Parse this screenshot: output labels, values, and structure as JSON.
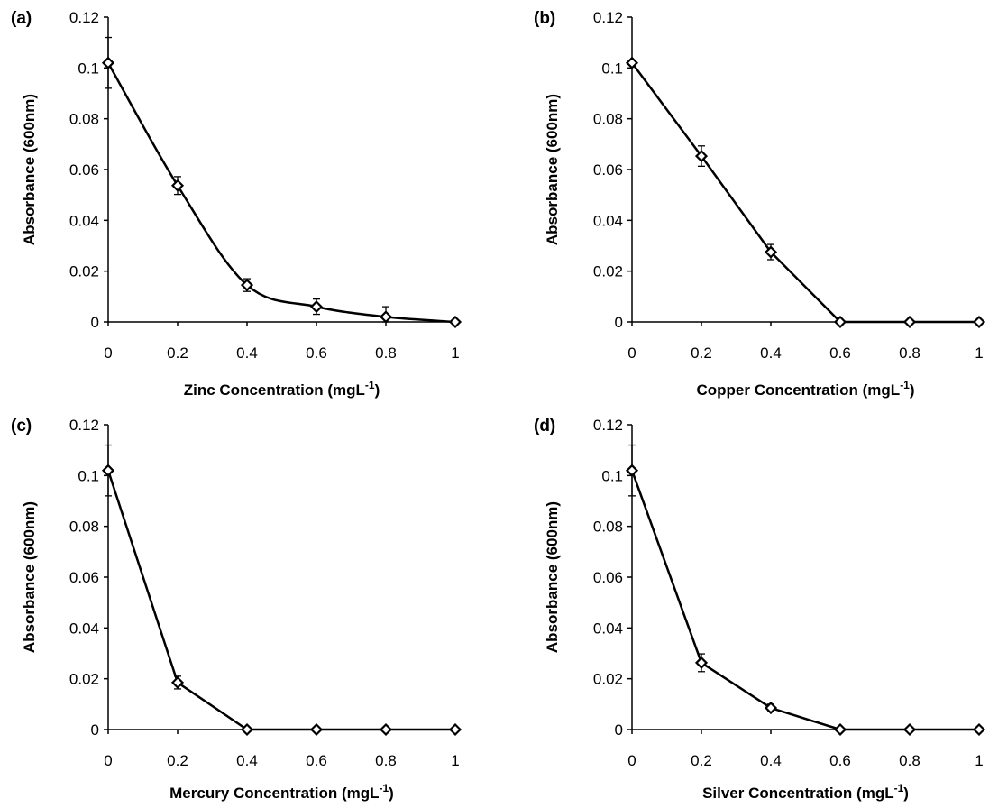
{
  "chart_data": [
    {
      "panel_label": "(a)",
      "type": "line",
      "smooth": true,
      "xlabel_main": "Zinc Concentration  (mgL",
      "xlabel_sup": "-1",
      "xlabel_end": ")",
      "ylabel": "Absorbance (600nm)",
      "xlim": [
        0,
        1
      ],
      "ylim": [
        0,
        0.12
      ],
      "x_ticks": [
        "0",
        "0.2",
        "0.4",
        "0.6",
        "0.8",
        "1"
      ],
      "y_ticks": [
        "0",
        "0.02",
        "0.04",
        "0.06",
        "0.08",
        "0.1",
        "0.12"
      ],
      "x": [
        0,
        0.2,
        0.4,
        0.6,
        0.8,
        1.0
      ],
      "y": [
        0.102,
        0.0537,
        0.0145,
        0.006,
        0.002,
        0.0
      ],
      "error": [
        0.01,
        0.0035,
        0.0025,
        0.003,
        0.004,
        0.0
      ]
    },
    {
      "panel_label": "(b)",
      "type": "line",
      "smooth": false,
      "xlabel_main": "Copper Concentration  (mgL",
      "xlabel_sup": "-1",
      "xlabel_end": ")",
      "ylabel": "Absorbance (600nm)",
      "xlim": [
        0,
        1
      ],
      "ylim": [
        0,
        0.12
      ],
      "x_ticks": [
        "0",
        "0.2",
        "0.4",
        "0.6",
        "0.8",
        "1"
      ],
      "y_ticks": [
        "0",
        "0.02",
        "0.04",
        "0.06",
        "0.08",
        "0.1",
        "0.12"
      ],
      "x": [
        0,
        0.2,
        0.4,
        0.6,
        0.8,
        1.0
      ],
      "y": [
        0.102,
        0.0653,
        0.0275,
        0.0,
        0.0,
        0.0
      ],
      "error": [
        0.0,
        0.004,
        0.003,
        0.0,
        0.0,
        0.0
      ]
    },
    {
      "panel_label": "(c)",
      "type": "line",
      "smooth": false,
      "xlabel_main": "Mercury Concentration  (mgL",
      "xlabel_sup": "-1",
      "xlabel_end": ")",
      "ylabel": "Absorbance (600nm)",
      "xlim": [
        0,
        1
      ],
      "ylim": [
        0,
        0.12
      ],
      "x_ticks": [
        "0",
        "0.2",
        "0.4",
        "0.6",
        "0.8",
        "1"
      ],
      "y_ticks": [
        "0",
        "0.02",
        "0.04",
        "0.06",
        "0.08",
        "0.1",
        "0.12"
      ],
      "x": [
        0,
        0.2,
        0.4,
        0.6,
        0.8,
        1.0
      ],
      "y": [
        0.102,
        0.0185,
        0.0,
        0.0,
        0.0,
        0.0
      ],
      "error": [
        0.01,
        0.0025,
        0.0,
        0.0,
        0.0,
        0.0
      ]
    },
    {
      "panel_label": "(d)",
      "type": "line",
      "smooth": false,
      "xlabel_main": "Silver Concentration  (mgL",
      "xlabel_sup": "-1",
      "xlabel_end": ")",
      "ylabel": "Absorbance (600nm)",
      "xlim": [
        0,
        1
      ],
      "ylim": [
        0,
        0.12
      ],
      "x_ticks": [
        "0",
        "0.2",
        "0.4",
        "0.6",
        "0.8",
        "1"
      ],
      "y_ticks": [
        "0",
        "0.02",
        "0.04",
        "0.06",
        "0.08",
        "0.1",
        "0.12"
      ],
      "x": [
        0,
        0.2,
        0.4,
        0.6,
        0.8,
        1.0
      ],
      "y": [
        0.102,
        0.0263,
        0.0085,
        0.0,
        0.0,
        0.0
      ],
      "error": [
        0.01,
        0.0035,
        0.0015,
        0.0,
        0.0,
        0.0
      ]
    }
  ]
}
